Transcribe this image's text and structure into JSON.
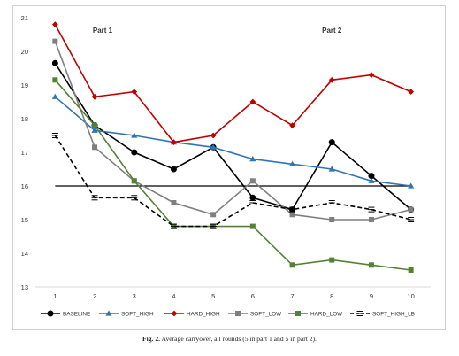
{
  "chart_data": {
    "type": "line",
    "x": [
      1,
      2,
      3,
      4,
      5,
      6,
      7,
      8,
      9,
      10
    ],
    "ylim": [
      13,
      21
    ],
    "yticks": [
      13,
      14,
      15,
      16,
      17,
      18,
      19,
      20,
      21
    ],
    "xticks": [
      1,
      2,
      3,
      4,
      5,
      6,
      7,
      8,
      9,
      10
    ],
    "grid": false,
    "legend_position": "bottom",
    "annotations": [
      "Part 1",
      "Part 2"
    ],
    "reference_line": 16,
    "part_divider_after_x": 5,
    "series": [
      {
        "name": "BASELINE",
        "color": "#000000",
        "marker": "circle",
        "dash": false,
        "values": [
          19.65,
          17.8,
          17.0,
          16.5,
          17.15,
          15.65,
          15.3,
          17.3,
          16.3,
          15.3
        ]
      },
      {
        "name": "SOFT_HIGH",
        "color": "#2e75b6",
        "marker": "triangle",
        "dash": false,
        "values": [
          18.65,
          17.65,
          17.5,
          17.3,
          17.15,
          16.8,
          16.65,
          16.5,
          16.15,
          16.0
        ]
      },
      {
        "name": "HARD_HIGH",
        "color": "#c00000",
        "marker": "diamond",
        "dash": false,
        "values": [
          20.8,
          18.65,
          18.8,
          17.3,
          17.5,
          18.5,
          17.8,
          19.15,
          19.3,
          18.8
        ]
      },
      {
        "name": "SOFT_LOW",
        "color": "#7f7f7f",
        "marker": "square",
        "dash": false,
        "values": [
          20.3,
          17.15,
          16.15,
          15.5,
          15.15,
          16.15,
          15.15,
          15.0,
          15.0,
          15.3
        ]
      },
      {
        "name": "HARD_LOW",
        "color": "#548235",
        "marker": "square",
        "dash": false,
        "values": [
          19.15,
          17.8,
          16.15,
          14.8,
          14.8,
          14.8,
          13.65,
          13.8,
          13.65,
          13.5
        ]
      },
      {
        "name": "SOFT_HIGH_LB",
        "color": "#000000",
        "marker": "bar",
        "dash": true,
        "values": [
          17.5,
          15.65,
          15.65,
          14.8,
          14.8,
          15.5,
          15.3,
          15.5,
          15.3,
          15.0
        ]
      }
    ]
  },
  "caption": {
    "label": "Fig. 2.",
    "text": "Average carryover, all rounds (5 in part 1 and 5 in part 2)."
  }
}
